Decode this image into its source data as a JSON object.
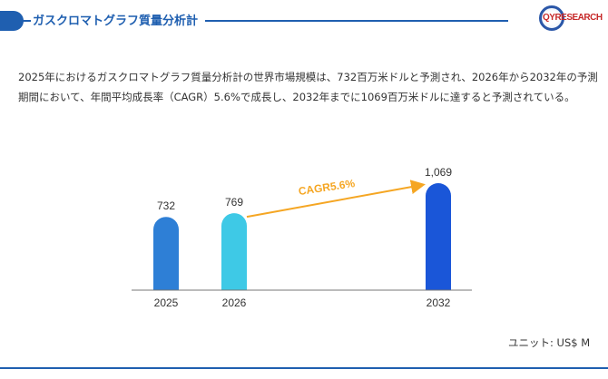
{
  "header": {
    "title": "ガスクロマトグラフ質量分析計",
    "logo_text": "QYRESEARCH"
  },
  "description": "2025年におけるガスクロマトグラフ質量分析計の世界市場規模は、732百万米ドルと予測され、2026年から2032年の予測期間において、年間平均成長率（CAGR）5.6%で成長し、2032年までに1069百万米ドルに達すると予測されている。",
  "unit_label": "ユニット: US$ M",
  "chart_data": {
    "type": "bar",
    "categories": [
      "2025",
      "2026",
      "2032"
    ],
    "values": [
      732,
      769,
      1069
    ],
    "value_labels": [
      "732",
      "769",
      "1,069"
    ],
    "bar_colors": [
      "#2e7fd6",
      "#3ec9e6",
      "#1a56d8"
    ],
    "annotation": {
      "text": "CAGR5.6%",
      "from": "2026",
      "to": "2032",
      "color": "#f5a623"
    },
    "xlabel": "",
    "ylabel": "",
    "grid": false
  }
}
